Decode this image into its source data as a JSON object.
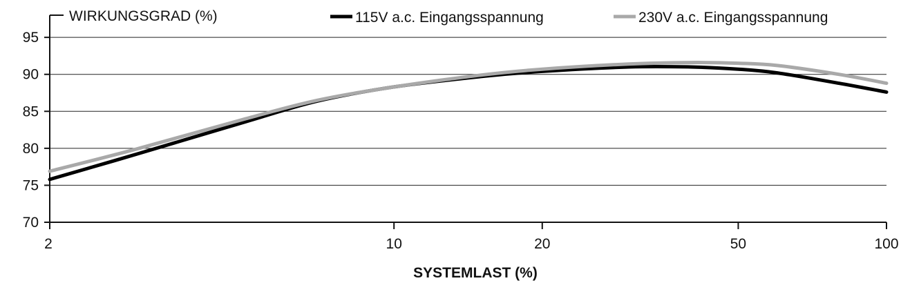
{
  "chart_data": {
    "type": "line",
    "title": "",
    "ylabel": "WIRKUNGSGRAD (%)",
    "xlabel": "SYSTEMLAST (%)",
    "x_scale": "log",
    "xlim": [
      2,
      100
    ],
    "ylim": [
      70,
      98
    ],
    "x_ticks": [
      2,
      10,
      20,
      50,
      100
    ],
    "y_ticks": [
      70,
      75,
      80,
      85,
      90,
      95
    ],
    "grid": "horizontal",
    "legend_position": "top-right",
    "series": [
      {
        "name": "115V a.c. Eingangsspannung",
        "color": "#000000",
        "x": [
          2,
          3,
          5,
          7,
          10,
          15,
          20,
          30,
          40,
          50,
          60,
          80,
          100
        ],
        "y": [
          75.8,
          79.2,
          83.6,
          86.4,
          88.3,
          89.7,
          90.4,
          91.0,
          91.0,
          90.7,
          90.2,
          88.8,
          87.6
        ]
      },
      {
        "name": "230V a.c. Eingangsspannung",
        "color": "#a9a9a9",
        "x": [
          2,
          3,
          5,
          7,
          10,
          15,
          20,
          30,
          40,
          50,
          60,
          80,
          100
        ],
        "y": [
          76.9,
          79.9,
          84.0,
          86.5,
          88.3,
          89.9,
          90.7,
          91.4,
          91.6,
          91.5,
          91.2,
          90.0,
          88.8
        ]
      }
    ]
  }
}
